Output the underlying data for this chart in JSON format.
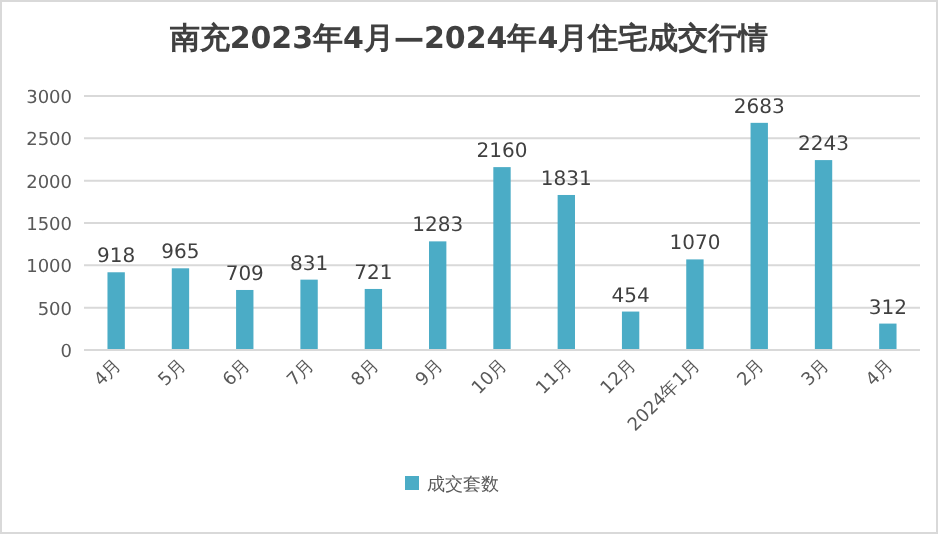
{
  "chart_data": {
    "type": "bar",
    "title": "南充2023年4月—2024年4月住宅成交行情",
    "categories": [
      "4月",
      "5月",
      "6月",
      "7月",
      "8月",
      "9月",
      "10月",
      "11月",
      "12月",
      "2024年1月",
      "2月",
      "3月",
      "4月"
    ],
    "series": [
      {
        "name": "成交套数",
        "color": "#4bacc6",
        "values": [
          918,
          965,
          709,
          831,
          721,
          1283,
          2160,
          1831,
          454,
          1070,
          2683,
          2243,
          312
        ]
      }
    ],
    "ylim": [
      0,
      3000
    ],
    "yticks": [
      0,
      500,
      1000,
      1500,
      2000,
      2500,
      3000
    ],
    "grid": "y",
    "legend": "bottom",
    "data_labels": true
  }
}
